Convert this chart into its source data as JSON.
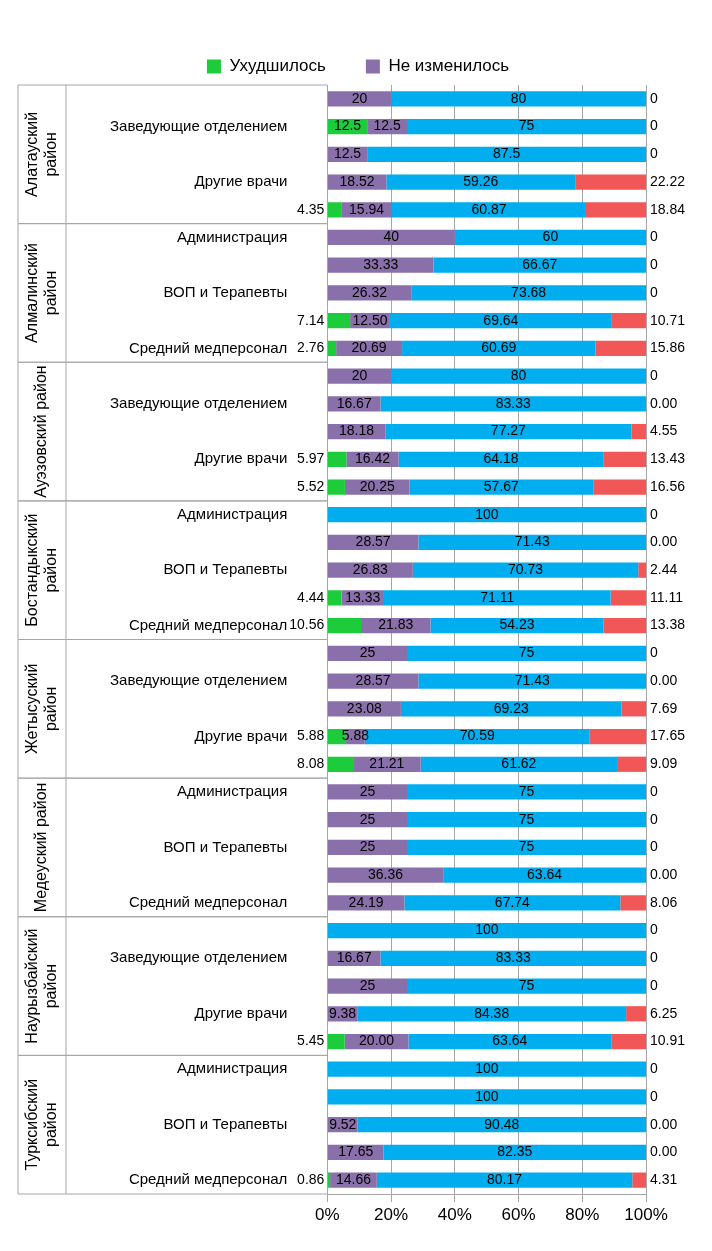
{
  "chart_data": {
    "type": "bar",
    "orientation": "horizontal",
    "stacked": true,
    "legend": "top",
    "grid": "x",
    "data_labels": true,
    "categories": [
      null,
      "Заведующие отделением",
      null,
      "Другие врачи",
      null,
      "Администрация",
      null,
      "ВОП и Терапевты",
      null,
      "Средний медперсонал",
      null,
      "Заведующие отделением",
      null,
      "Другие врачи",
      null,
      "Администрация",
      null,
      "ВОП и Терапевты",
      null,
      "Средний медперсонал",
      null,
      "Заведующие отделением",
      null,
      "Другие врачи",
      null,
      "Администрация",
      null,
      "ВОП и Терапевты",
      null,
      "Средний медперсонал",
      null,
      "Заведующие отделением",
      null,
      "Другие врачи",
      null,
      "Администрация",
      null,
      "ВОП и Терапевты",
      null,
      "Средний медперсонал"
    ],
    "annotations": [
      "Алатауский район",
      "Алмалинский район",
      "Ауэзовский район",
      "Бостандыкский район",
      "Жетысуский район",
      "Медеуский район",
      "Наурызбайский район",
      "Турксибский район"
    ],
    "xlim": [
      0,
      100
    ],
    "xticks": [
      {
        "value": 0,
        "label": "0%"
      },
      {
        "value": 20,
        "label": "20%"
      },
      {
        "value": 40,
        "label": "40%"
      },
      {
        "value": 60,
        "label": "60%"
      },
      {
        "value": 80,
        "label": "80%"
      },
      {
        "value": 100,
        "label": "100%"
      }
    ],
    "series": [
      {
        "name": "Ухудшилось",
        "color": "#1dcc3a",
        "values": [
          0,
          12.5,
          0,
          0,
          4.35,
          0,
          0,
          0,
          7.14,
          2.76,
          0,
          0,
          0,
          5.97,
          5.52,
          0,
          0,
          0,
          4.44,
          10.56,
          0,
          0,
          0,
          5.88,
          8.08,
          0,
          0,
          0,
          0,
          0,
          0,
          0,
          0,
          0,
          5.45,
          0,
          0,
          0,
          0,
          0.86
        ],
        "value_labels": [
          null,
          "12.5",
          null,
          null,
          "4.35",
          null,
          null,
          null,
          "7.14",
          "2.76",
          null,
          null,
          null,
          "5.97",
          "5.52",
          null,
          null,
          null,
          "4.44",
          "10.56",
          null,
          null,
          null,
          "5.88",
          "8.08",
          null,
          null,
          null,
          null,
          null,
          null,
          null,
          null,
          null,
          "5.45",
          null,
          null,
          null,
          null,
          "0.86"
        ]
      },
      {
        "name": "Не изменилось",
        "color": "#8a70aa",
        "values": [
          20,
          12.5,
          12.5,
          18.52,
          15.94,
          40,
          33.33,
          26.32,
          12.5,
          20.69,
          20,
          16.67,
          18.18,
          16.42,
          20.25,
          0,
          28.57,
          26.83,
          13.33,
          21.83,
          25,
          28.57,
          23.08,
          5.88,
          21.21,
          25,
          25,
          25,
          36.36,
          24.19,
          0,
          16.67,
          25,
          9.38,
          20,
          0,
          0,
          9.52,
          17.65,
          14.66
        ],
        "value_labels": [
          "20",
          "12.5",
          "12.5",
          "18.52",
          "15.94",
          "40",
          "33.33",
          "26.32",
          "12.50",
          "20.69",
          "20",
          "16.67",
          "18.18",
          "16.42",
          "20.25",
          null,
          "28.57",
          "26.83",
          "13.33",
          "21.83",
          "25",
          "28.57",
          "23.08",
          "5.88",
          "21.21",
          "25",
          "25",
          "25",
          "36.36",
          "24.19",
          null,
          "16.67",
          "25",
          "9.38",
          "20.00",
          null,
          null,
          "9.52",
          "17.65",
          "14.66"
        ]
      },
      {
        "color": "#00adef",
        "values": [
          80,
          75,
          87.5,
          59.26,
          60.87,
          60,
          66.67,
          73.68,
          69.64,
          60.69,
          80,
          83.33,
          77.27,
          64.18,
          57.67,
          100,
          71.43,
          70.73,
          71.11,
          54.23,
          75,
          71.43,
          69.23,
          70.59,
          61.62,
          75,
          75,
          75,
          63.64,
          67.74,
          100,
          83.33,
          75,
          84.38,
          63.64,
          100,
          100,
          90.48,
          82.35,
          80.17
        ],
        "value_labels": [
          "80",
          "75",
          "87.5",
          "59.26",
          "60.87",
          "60",
          "66.67",
          "73.68",
          "69.64",
          "60.69",
          "80",
          "83.33",
          "77.27",
          "64.18",
          "57.67",
          "100",
          "71.43",
          "70.73",
          "71.11",
          "54.23",
          "75",
          "71.43",
          "69.23",
          "70.59",
          "61.62",
          "75",
          "75",
          "75",
          "63.64",
          "67.74",
          "100",
          "83.33",
          "75",
          "84.38",
          "63.64",
          "100",
          "100",
          "90.48",
          "82.35",
          "80.17"
        ]
      },
      {
        "color": "#f25757",
        "values": [
          0,
          0,
          0,
          22.22,
          18.84,
          0,
          0,
          0,
          10.71,
          15.86,
          0,
          0,
          4.55,
          13.43,
          16.56,
          0,
          0,
          2.44,
          11.11,
          13.38,
          0,
          0,
          7.69,
          17.65,
          9.09,
          0,
          0,
          0,
          0,
          8.06,
          0,
          0,
          0,
          6.25,
          10.91,
          0,
          0,
          0,
          0,
          4.31
        ],
        "value_labels": [
          "0",
          "0",
          "0",
          "22.22",
          "18.84",
          "0",
          "0",
          "0",
          "10.71",
          "15.86",
          "0",
          "0.00",
          "4.55",
          "13.43",
          "16.56",
          "0",
          "0.00",
          "2.44",
          "11.11",
          "13.38",
          "0",
          "0.00",
          "7.69",
          "17.65",
          "9.09",
          "0",
          "0",
          "0",
          "0.00",
          "8.06",
          "0",
          "0",
          "0",
          "6.25",
          "10.91",
          "0",
          "0",
          "0.00",
          "0.00",
          "4.31"
        ]
      }
    ]
  }
}
